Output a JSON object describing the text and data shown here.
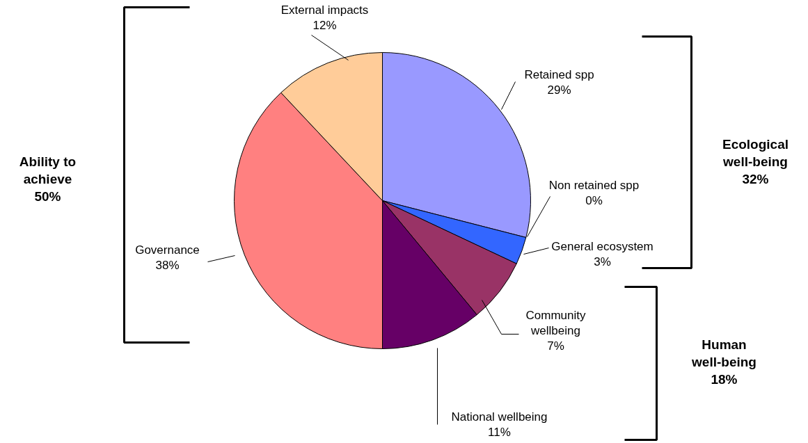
{
  "chart_data": {
    "type": "pie",
    "categories": [
      "Retained spp",
      "Non retained spp",
      "General ecosystem",
      "Community wellbeing",
      "National wellbeing",
      "Governance",
      "External impacts"
    ],
    "values": [
      29,
      0,
      3,
      7,
      11,
      38,
      12
    ],
    "value_labels": [
      "29%",
      "0%",
      "3%",
      "7%",
      "11%",
      "38%",
      "12%"
    ],
    "colors": [
      "#9999ff",
      "#000080",
      "#3366ff",
      "#993366",
      "#660066",
      "#ff8080",
      "#ffcc99"
    ],
    "annotations": [
      "Ability to\nachieve\n50%",
      "Ecological\nwell-being\n32%",
      "Human\nwell-being\n18%"
    ]
  }
}
